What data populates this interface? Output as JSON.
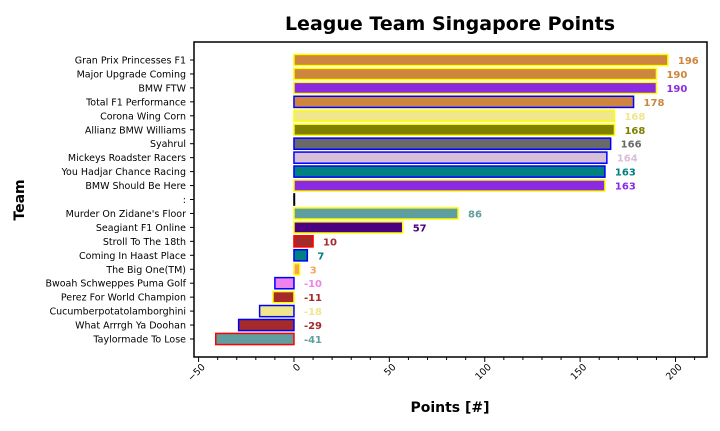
{
  "chart_data": {
    "type": "bar",
    "orientation": "horizontal",
    "title": "League Team Singapore Points",
    "xlabel": "Points [#]",
    "ylabel": "Team",
    "xlim": [
      -52.4,
      216.5
    ],
    "xticks": [
      -50,
      0,
      50,
      100,
      150,
      200
    ],
    "grid": false,
    "categories": [
      "Gran Prix Princesses F1",
      "Major Upgrade Coming",
      "BMW FTW",
      "Total F1 Performance",
      "Corona Wing Corn",
      "Allianz BMW Williams",
      "Syahrul",
      "Mickeys Roadster Racers",
      "You Hadjar Chance Racing",
      "BMW Should Be Here",
      ":",
      "Murder On Zidane's Floor",
      "Seagiant F1 Online",
      "Stroll To The 18th",
      "Coming In Haast Place",
      "The Big One(TM)",
      "Bwoah Schweppes Puma Golf",
      "Perez For World Champion",
      "Cucumberpotatolamborghini",
      "What Arrrgh Ya Doohan",
      "Taylormade To Lose"
    ],
    "values": [
      196,
      190,
      190,
      178,
      168,
      168,
      166,
      164,
      163,
      163,
      0,
      86,
      57,
      10,
      7,
      3,
      -10,
      -11,
      -18,
      -29,
      -41
    ],
    "value_labels": [
      "196",
      "190",
      "190",
      "178",
      "168",
      "168",
      "166",
      "164",
      "163",
      "163",
      "",
      "86",
      "57",
      "10",
      "7",
      "3",
      "-10",
      "-11",
      "-18",
      "-29",
      "-41"
    ],
    "fill_colors": [
      "#CD853F",
      "#CD853F",
      "#8A2BE2",
      "#CD853F",
      "#F0E68C",
      "#808000",
      "#696969",
      "#D8BFD8",
      "#008080",
      "#8A2BE2",
      "#000000",
      "#5F9EA0",
      "#4B0082",
      "#A52A2A",
      "#008080",
      "#F4A460",
      "#EE82EE",
      "#A52A2A",
      "#F0E68C",
      "#A52A2A",
      "#5F9EA0"
    ],
    "edge_colors": [
      "#FFFF00",
      "#FFFF00",
      "#FFFF00",
      "#0000FF",
      "#FFFF00",
      "#FFFF00",
      "#0000FF",
      "#0000FF",
      "#0000FF",
      "#FFFF00",
      "#000000",
      "#FFFF00",
      "#FFFF00",
      "#FF0000",
      "#0000FF",
      "#FFFF00",
      "#0000FF",
      "#FFFF00",
      "#0000FF",
      "#0000FF",
      "#FF0000"
    ]
  }
}
